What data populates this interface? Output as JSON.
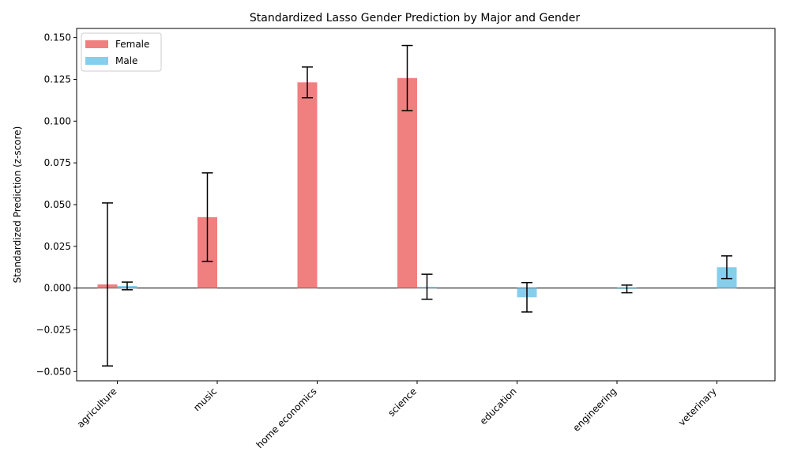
{
  "chart_data": {
    "type": "bar",
    "title": "Standardized Lasso Gender Prediction by Major and Gender",
    "xlabel": "",
    "ylabel": "Standardized Prediction (z-score)",
    "ylim": [
      -0.0555,
      0.1555
    ],
    "yticks": [
      -0.05,
      -0.025,
      0.0,
      0.025,
      0.05,
      0.075,
      0.1,
      0.125,
      0.15
    ],
    "ytick_labels": [
      "−0.050",
      "−0.025",
      "0.000",
      "0.025",
      "0.050",
      "0.075",
      "0.100",
      "0.125",
      "0.150"
    ],
    "categories": [
      "agriculture",
      "music",
      "home economics",
      "science",
      "education",
      "engineering",
      "veterinary"
    ],
    "series": [
      {
        "name": "Female",
        "color": "#f08080",
        "values": [
          0.0022,
          0.0425,
          0.1232,
          0.1258,
          null,
          null,
          null
        ],
        "errors": [
          0.0488,
          0.0265,
          0.0092,
          0.0195,
          null,
          null,
          null
        ]
      },
      {
        "name": "Male",
        "color": "#87ceeb",
        "values": [
          0.0013,
          null,
          null,
          0.0008,
          -0.0055,
          -0.0005,
          0.0125
        ],
        "errors": [
          0.0023,
          null,
          null,
          0.0075,
          0.0088,
          0.0023,
          0.0068
        ]
      }
    ],
    "grid": false,
    "legend_position": "top-left",
    "zero_line": true
  }
}
